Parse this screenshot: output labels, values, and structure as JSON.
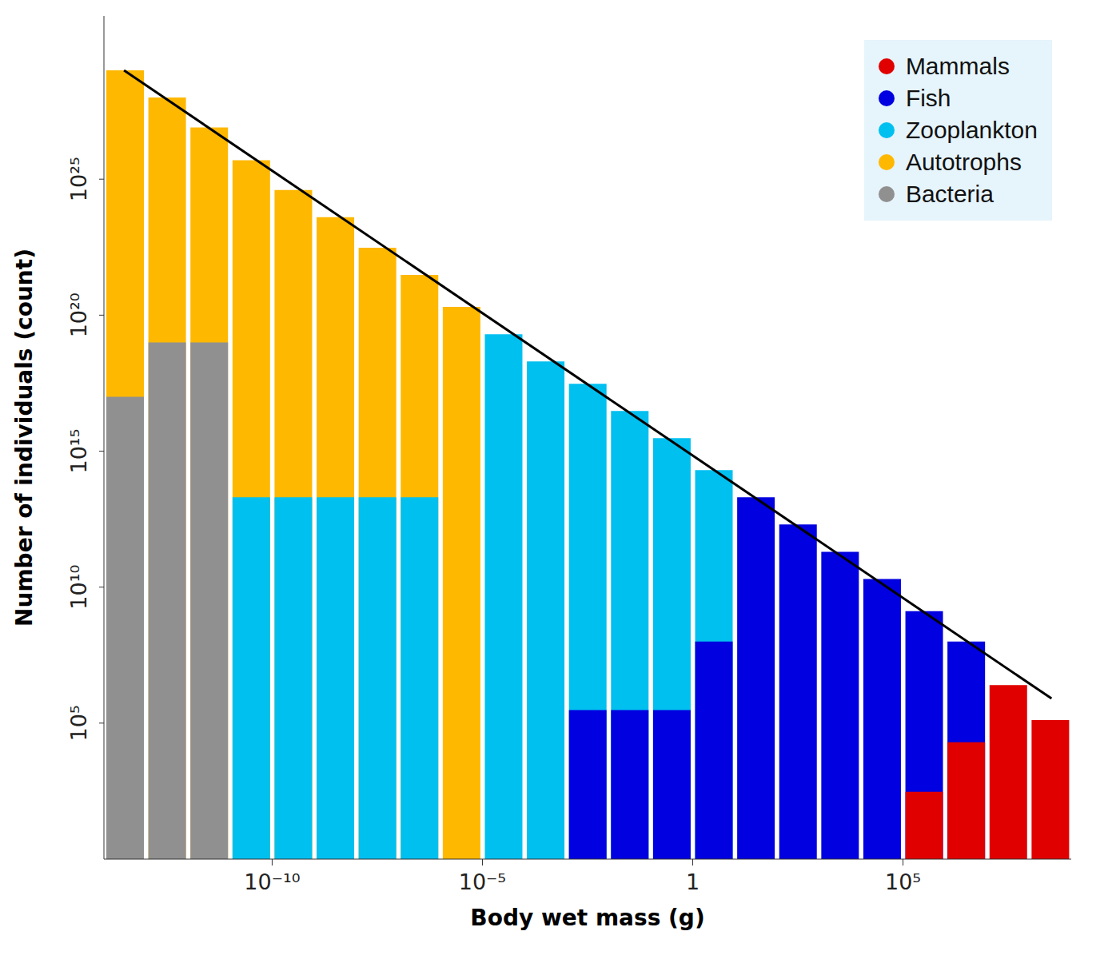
{
  "chart_data": {
    "type": "bar",
    "x_label": "Body wet mass (g)",
    "y_label": "Number of individuals (count)",
    "log": true,
    "legend": "upper right",
    "bins": [
      1e-14,
      1e-13,
      1e-12,
      1e-11,
      1e-10,
      1e-09,
      1e-08,
      1e-07,
      1e-06,
      1e-05,
      0.0001,
      0.001,
      0.01,
      0.1,
      1,
      10,
      100,
      1000,
      10000,
      100000,
      1000000,
      10000000,
      100000000,
      1000000000
    ],
    "xlim": [
      1e-14,
      1000000000
    ],
    "xticks": [
      {
        "value": 1e-10,
        "label": "10⁻¹⁰"
      },
      {
        "value": 1e-05,
        "label": "10⁻⁵"
      },
      1,
      {
        "value": 100000,
        "label": "10⁵"
      }
    ],
    "ylim": [
      1,
      1e+31
    ],
    "yticks": [
      {
        "value": 100000,
        "label": "10⁵"
      },
      {
        "value": 10000000000,
        "label": "10¹⁰"
      },
      {
        "value": 1000000000000000.0,
        "label": "10¹⁵"
      },
      {
        "value": 1e+20,
        "label": "10²⁰"
      },
      {
        "value": 1e+25,
        "label": "10²⁵"
      }
    ],
    "series": [
      {
        "name": "Mammals",
        "color": "#e00000",
        "values": [
          null,
          null,
          null,
          null,
          null,
          null,
          null,
          null,
          null,
          null,
          null,
          null,
          null,
          null,
          null,
          null,
          null,
          null,
          null,
          300,
          20000,
          2500000,
          130000
        ]
      },
      {
        "name": "Fish",
        "color": "#0000e0",
        "values": [
          null,
          null,
          null,
          null,
          null,
          null,
          null,
          null,
          null,
          null,
          null,
          300000,
          300000,
          300000,
          100000000,
          20000000000000,
          2000000000000,
          200000000000,
          20000000000,
          1300000000,
          100000000,
          null,
          null
        ]
      },
      {
        "name": "Zooplankton",
        "color": "#00c0f0",
        "values": [
          null,
          null,
          null,
          20000000000000,
          20000000000000,
          20000000000000,
          20000000000000,
          20000000000000,
          null,
          2e+19,
          2e+18,
          3e+17,
          3e+16,
          3000000000000000.0,
          200000000000000.0,
          null,
          null,
          null,
          null,
          null,
          null,
          null,
          null
        ]
      },
      {
        "name": "Autotrophs",
        "color": "#ffb800",
        "values": [
          1e+29,
          1e+28,
          8e+26,
          5e+25,
          4e+24,
          4e+23,
          3e+22,
          3e+21,
          2e+20,
          null,
          null,
          null,
          null,
          null,
          null,
          null,
          null,
          null,
          null,
          null,
          null,
          null,
          null
        ]
      },
      {
        "name": "Bacteria",
        "color": "#909090",
        "values": [
          1e+17,
          1e+19,
          1e+19,
          null,
          null,
          null,
          null,
          null,
          null,
          null,
          null,
          null,
          null,
          null,
          null,
          null,
          null,
          null,
          null,
          null,
          null,
          null,
          null
        ]
      }
    ],
    "fit_line": {
      "x": [
        3e-14,
        340000000
      ],
      "values": [
        1e+29,
        800000
      ],
      "color": "#000000"
    }
  }
}
